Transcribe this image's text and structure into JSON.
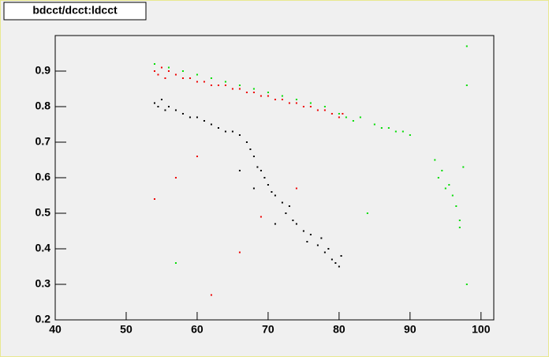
{
  "chart_data": {
    "type": "scatter",
    "title": "bdcct/dcct:ldcct",
    "xlim": [
      40,
      101.8
    ],
    "ylim": [
      0.2,
      1.0
    ],
    "xticks": [
      40,
      50,
      60,
      70,
      80,
      90,
      100
    ],
    "yticks": [
      0.2,
      0.3,
      0.4,
      0.5,
      0.6,
      0.7,
      0.8,
      0.9
    ],
    "series": [
      {
        "color": "#000000",
        "x": [
          54,
          54.5,
          55,
          55.5,
          56,
          57,
          58,
          59,
          60,
          61,
          62,
          63,
          64,
          65,
          66,
          67,
          67.5,
          68,
          68.5,
          69,
          69.5,
          70,
          70.5,
          71,
          72,
          72.5,
          73,
          73.5,
          74,
          75,
          75.5,
          76,
          77,
          77.5,
          78,
          78.5,
          79,
          79.5,
          80,
          80.3,
          66,
          68,
          71
        ],
        "values": [
          0.81,
          0.8,
          0.82,
          0.79,
          0.8,
          0.79,
          0.78,
          0.77,
          0.77,
          0.76,
          0.75,
          0.74,
          0.73,
          0.73,
          0.72,
          0.7,
          0.68,
          0.66,
          0.63,
          0.62,
          0.6,
          0.58,
          0.56,
          0.55,
          0.53,
          0.5,
          0.52,
          0.48,
          0.47,
          0.45,
          0.42,
          0.44,
          0.41,
          0.43,
          0.39,
          0.4,
          0.37,
          0.36,
          0.35,
          0.38,
          0.62,
          0.57,
          0.47
        ]
      },
      {
        "color": "#00dd00",
        "x": [
          54,
          56,
          58,
          60,
          62,
          64,
          66,
          68,
          70,
          72,
          74,
          76,
          78,
          80,
          81,
          82,
          83,
          85,
          86,
          87,
          88,
          89,
          90,
          93.5,
          94,
          94.5,
          95,
          95.5,
          96,
          96.5,
          97,
          97.5,
          98,
          98,
          98,
          57,
          84,
          97
        ],
        "values": [
          0.92,
          0.91,
          0.9,
          0.89,
          0.88,
          0.87,
          0.86,
          0.85,
          0.84,
          0.83,
          0.82,
          0.81,
          0.8,
          0.78,
          0.77,
          0.76,
          0.77,
          0.75,
          0.74,
          0.74,
          0.73,
          0.73,
          0.72,
          0.65,
          0.6,
          0.62,
          0.57,
          0.58,
          0.55,
          0.52,
          0.48,
          0.63,
          0.97,
          0.86,
          0.3,
          0.36,
          0.5,
          0.46
        ]
      },
      {
        "color": "#ee0000",
        "x": [
          54,
          54.5,
          55,
          55.5,
          56,
          57,
          58,
          59,
          60,
          61,
          62,
          63,
          64,
          65,
          66,
          67,
          68,
          69,
          70,
          71,
          72,
          73,
          74,
          75,
          76,
          77,
          78,
          79,
          80,
          80.5,
          54,
          57,
          60,
          62,
          69,
          74,
          66
        ],
        "values": [
          0.9,
          0.89,
          0.91,
          0.88,
          0.9,
          0.89,
          0.88,
          0.88,
          0.87,
          0.87,
          0.86,
          0.86,
          0.86,
          0.85,
          0.85,
          0.84,
          0.84,
          0.83,
          0.83,
          0.82,
          0.82,
          0.81,
          0.81,
          0.8,
          0.8,
          0.79,
          0.79,
          0.78,
          0.77,
          0.78,
          0.54,
          0.6,
          0.66,
          0.27,
          0.49,
          0.57,
          0.39
        ]
      }
    ]
  }
}
